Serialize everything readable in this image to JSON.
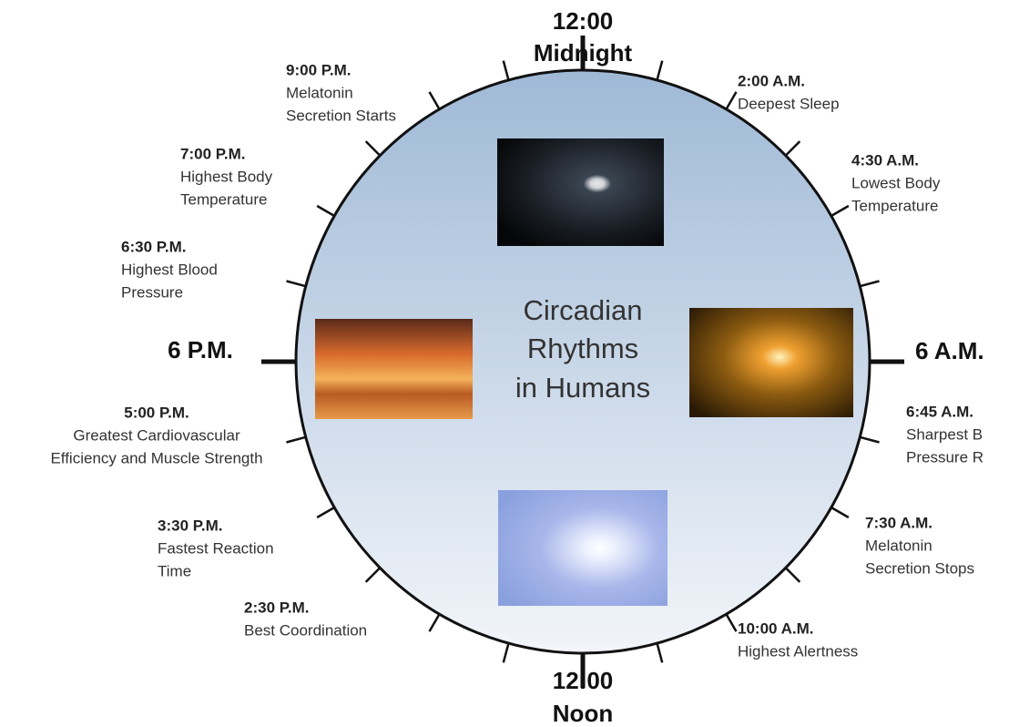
{
  "title": [
    "Circadian",
    "Rhythms",
    "in Humans"
  ],
  "markers": {
    "top": [
      "12:00",
      "Midnight"
    ],
    "left": "6 P.M.",
    "right": "6 A.M.",
    "bottom": [
      "12:00",
      "Noon"
    ]
  },
  "events": [
    {
      "time": "9:00 P.M.",
      "lines": [
        "Melatonin",
        "Secretion Starts"
      ]
    },
    {
      "time": "2:00 A.M.",
      "lines": [
        "Deepest Sleep"
      ]
    },
    {
      "time": "7:00 P.M.",
      "lines": [
        "Highest Body",
        "Temperature"
      ]
    },
    {
      "time": "4:30 A.M.",
      "lines": [
        "Lowest Body",
        "Temperature"
      ]
    },
    {
      "time": "6:30 P.M.",
      "lines": [
        "Highest Blood",
        "Pressure"
      ]
    },
    {
      "time": "6:45 A.M.",
      "lines": [
        "Sharpest B",
        "Pressure R"
      ]
    },
    {
      "time": "5:00 P.M.",
      "lines": [
        "Greatest Cardiovascular",
        "Efficiency and Muscle Strength"
      ]
    },
    {
      "time": "7:30 A.M.",
      "lines": [
        "Melatonin",
        "Secretion Stops"
      ]
    },
    {
      "time": "3:30 P.M.",
      "lines": [
        "Fastest Reaction",
        "Time"
      ]
    },
    {
      "time": "2:30 P.M.",
      "lines": [
        "Best Coordination"
      ]
    },
    {
      "time": "10:00 A.M.",
      "lines": [
        "Highest Alertness"
      ]
    }
  ]
}
